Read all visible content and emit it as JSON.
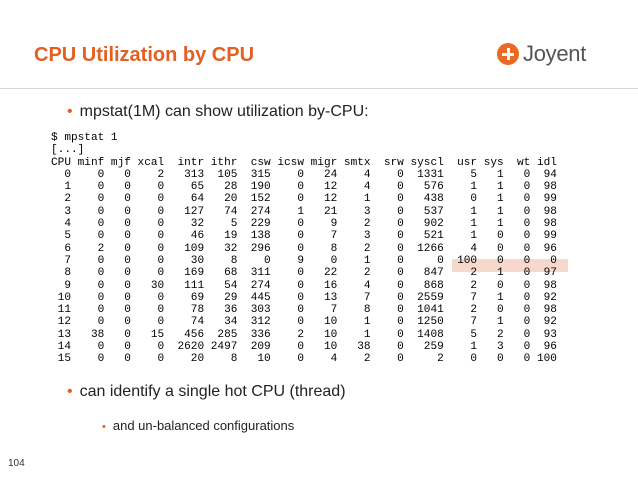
{
  "slide": {
    "title": "CPU Utilization by CPU",
    "logo_text": "Joyent",
    "logo_icon": "joyent-plus-logo",
    "accent_color": "#e35f22",
    "bullet1": "mpstat(1M) can show utilization by-CPU:",
    "bullet2": "can identify a single hot CPU (thread)",
    "sub_bullet": "and un-balanced configurations",
    "page_number": "104"
  },
  "terminal": {
    "lines": [
      "$ mpstat 1",
      "[...]",
      "CPU minf mjf xcal  intr ithr  csw icsw migr smtx  srw syscl  usr sys  wt idl",
      "  0    0   0    2   313  105  315    0   24    4    0  1331    5   1   0  94",
      "  1    0   0    0    65   28  190    0   12    4    0   576    1   1   0  98",
      "  2    0   0    0    64   20  152    0   12    1    0   438    0   1   0  99",
      "  3    0   0    0   127   74  274    1   21    3    0   537    1   1   0  98",
      "  4    0   0    0    32    5  229    0    9    2    0   902    1   1   0  98",
      "  5    0   0    0    46   19  138    0    7    3    0   521    1   0   0  99",
      "  6    2   0    0   109   32  296    0    8    2    0  1266    4   0   0  96",
      "  7    0   0    0    30    8    0    9    0    1    0     0  100   0   0   0",
      "  8    0   0    0   169   68  311    0   22    2    0   847    2   1   0  97",
      "  9    0   0   30   111   54  274    0   16    4    0   868    2   0   0  98",
      " 10    0   0    0    69   29  445    0   13    7    0  2559    7   1   0  92",
      " 11    0   0    0    78   36  303    0    7    8    0  1041    2   0   0  98",
      " 12    0   0    0    74   34  312    0   10    1    0  1250    7   1   0  92",
      " 13   38   0   15   456  285  336    2   10    1    0  1408    5   2   0  93",
      " 14    0   0    0  2620 2497  209    0   10   38    0   259    1   3   0  96",
      " 15    0   0    0    20    8   10    0    4    2    0     2    0   0   0 100"
    ]
  }
}
